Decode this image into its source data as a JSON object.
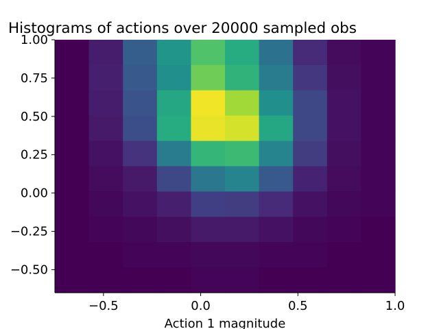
{
  "chart_data": {
    "type": "heatmap",
    "title": "Histograms of actions over 20000 sampled obs",
    "xlabel": "Action 1 magnitude",
    "ylabel": "",
    "xlim": [
      -0.75,
      1.0
    ],
    "ylim": [
      -0.65,
      1.0
    ],
    "x_edges": [
      -0.75,
      -0.575,
      -0.4,
      -0.225,
      -0.05,
      0.125,
      0.3,
      0.475,
      0.65,
      0.825,
      1.0
    ],
    "y_edges": [
      -0.65,
      -0.485,
      -0.32,
      -0.155,
      0.01,
      0.175,
      0.34,
      0.505,
      0.67,
      0.835,
      1.0
    ],
    "x_ticks": [
      -0.5,
      0.0,
      0.5,
      1.0
    ],
    "x_tick_labels": [
      "−0.5",
      "0.0",
      "0.5",
      "1.0"
    ],
    "y_ticks": [
      -0.5,
      -0.25,
      0.0,
      0.25,
      0.5,
      0.75,
      1.0
    ],
    "y_tick_labels": [
      "−0.50",
      "−0.25",
      "0.00",
      "0.25",
      "0.50",
      "0.75",
      "1.00"
    ],
    "colormap": "viridis",
    "grid": false,
    "values_note_rows_top_to_bottom": true,
    "values": [
      [
        0.0,
        0.08,
        0.3,
        0.52,
        0.72,
        0.62,
        0.38,
        0.12,
        0.03,
        0.01
      ],
      [
        0.0,
        0.09,
        0.28,
        0.5,
        0.78,
        0.65,
        0.42,
        0.16,
        0.04,
        0.01
      ],
      [
        0.0,
        0.08,
        0.26,
        0.6,
        0.98,
        0.86,
        0.5,
        0.22,
        0.05,
        0.01
      ],
      [
        0.0,
        0.07,
        0.24,
        0.62,
        0.97,
        0.94,
        0.6,
        0.22,
        0.05,
        0.01
      ],
      [
        0.0,
        0.05,
        0.15,
        0.42,
        0.66,
        0.68,
        0.45,
        0.18,
        0.04,
        0.01
      ],
      [
        0.0,
        0.03,
        0.07,
        0.22,
        0.4,
        0.45,
        0.28,
        0.1,
        0.03,
        0.01
      ],
      [
        0.0,
        0.02,
        0.05,
        0.09,
        0.19,
        0.18,
        0.12,
        0.05,
        0.02,
        0.01
      ],
      [
        0.0,
        0.01,
        0.02,
        0.04,
        0.07,
        0.07,
        0.05,
        0.02,
        0.01,
        0.0
      ],
      [
        0.0,
        0.0,
        0.01,
        0.01,
        0.02,
        0.02,
        0.01,
        0.01,
        0.0,
        0.0
      ],
      [
        0.0,
        0.0,
        0.0,
        0.0,
        0.01,
        0.01,
        0.0,
        0.0,
        0.0,
        0.0
      ]
    ]
  }
}
